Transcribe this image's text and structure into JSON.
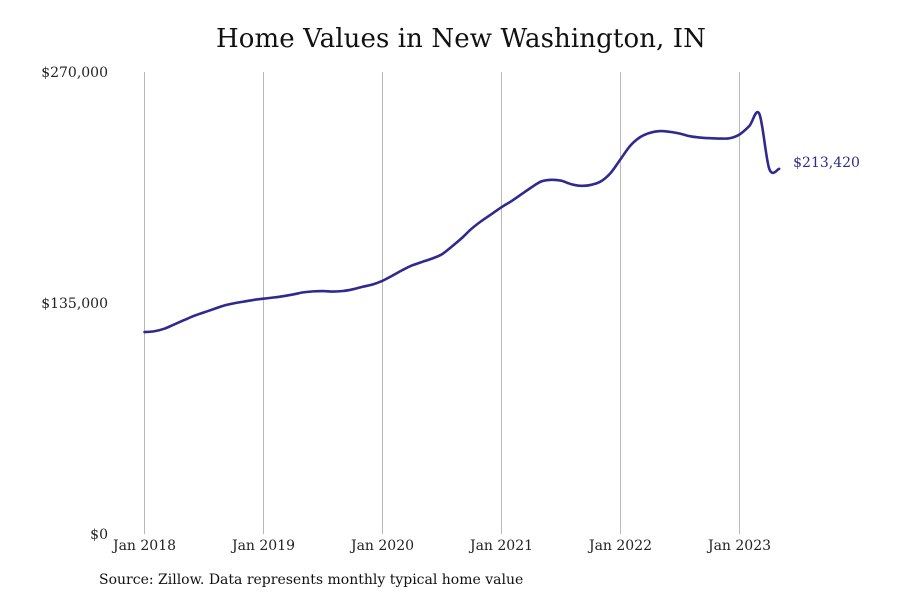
{
  "chart_data": {
    "type": "line",
    "title": "Home Values in New Washington, IN",
    "xlabel": "",
    "ylabel": "",
    "ylim": [
      0,
      270000
    ],
    "y_ticks": [
      {
        "value": 0,
        "label": "$0"
      },
      {
        "value": 135000,
        "label": "$135,000"
      },
      {
        "value": 270000,
        "label": "$270,000"
      }
    ],
    "x_ticks": [
      {
        "value": 2018.0,
        "label": "Jan 2018"
      },
      {
        "value": 2019.0,
        "label": "Jan 2019"
      },
      {
        "value": 2020.0,
        "label": "Jan 2020"
      },
      {
        "value": 2021.0,
        "label": "Jan 2021"
      },
      {
        "value": 2022.0,
        "label": "Jan 2022"
      },
      {
        "value": 2023.0,
        "label": "Jan 2023"
      }
    ],
    "xlim": [
      2018.0,
      2023.333
    ],
    "grid": "vertical",
    "line_color": "#2e2a8f",
    "end_label": "$213,420",
    "series": [
      {
        "x": [
          2018.0,
          2018.083,
          2018.167,
          2018.25,
          2018.333,
          2018.417,
          2018.5,
          2018.583,
          2018.667,
          2018.75,
          2018.833,
          2018.917,
          2019.0,
          2019.083,
          2019.167,
          2019.25,
          2019.333,
          2019.417,
          2019.5,
          2019.583,
          2019.667,
          2019.75,
          2019.833,
          2019.917,
          2020.0,
          2020.083,
          2020.167,
          2020.25,
          2020.333,
          2020.417,
          2020.5,
          2020.583,
          2020.667,
          2020.75,
          2020.833,
          2020.917,
          2021.0,
          2021.083,
          2021.167,
          2021.25,
          2021.333,
          2021.417,
          2021.5,
          2021.583,
          2021.667,
          2021.75,
          2021.833,
          2021.917,
          2022.0,
          2022.083,
          2022.167,
          2022.25,
          2022.333,
          2022.417,
          2022.5,
          2022.583,
          2022.667,
          2022.75,
          2022.833,
          2022.917,
          2023.0,
          2023.083,
          2023.167,
          2023.25,
          2023.333
        ],
        "values": [
          118000,
          118500,
          120000,
          122500,
          125000,
          127500,
          129500,
          131500,
          133500,
          134800,
          135800,
          136800,
          137500,
          138200,
          139000,
          140000,
          141200,
          141800,
          142000,
          141700,
          142000,
          143000,
          144500,
          145800,
          148000,
          151000,
          154200,
          157000,
          159000,
          161000,
          163500,
          168000,
          173000,
          178500,
          183000,
          187000,
          191000,
          194500,
          198500,
          202500,
          206000,
          207000,
          206500,
          204500,
          203500,
          204000,
          206000,
          211000,
          219000,
          227000,
          232000,
          234500,
          235500,
          235000,
          234000,
          232500,
          231700,
          231300,
          231100,
          231300,
          233500,
          238500,
          245500,
          213420,
          213420
        ]
      }
    ],
    "source": "Source: Zillow. Data represents monthly typical home value"
  }
}
